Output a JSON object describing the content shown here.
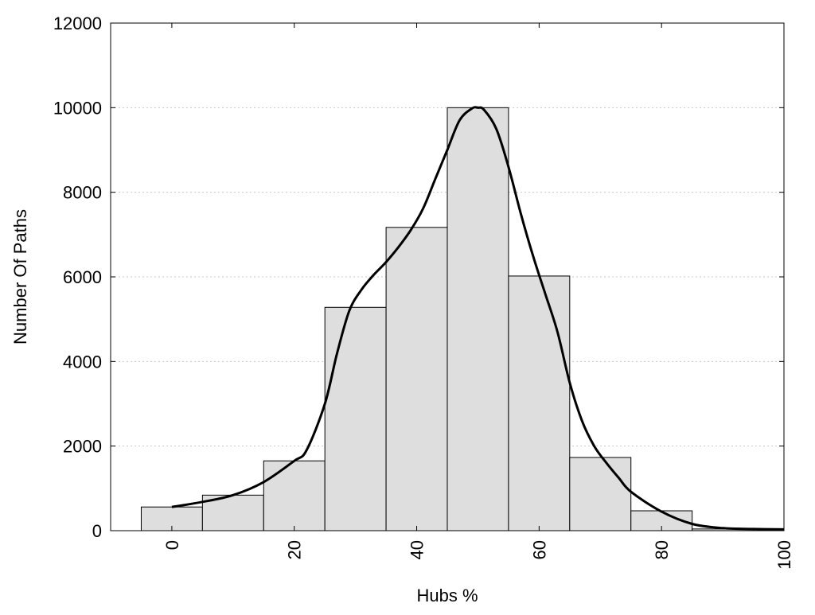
{
  "chart_data": {
    "type": "bar",
    "xlabel": "Hubs %",
    "ylabel": "Number Of Paths",
    "xlim": [
      -10,
      100
    ],
    "ylim": [
      0,
      12000
    ],
    "x_ticks": [
      0,
      20,
      40,
      60,
      80,
      100
    ],
    "y_ticks": [
      0,
      2000,
      4000,
      6000,
      8000,
      10000,
      12000
    ],
    "grid": "horizontal dotted",
    "bin_width": 10,
    "bins": [
      {
        "center": 0,
        "value": 560
      },
      {
        "center": 10,
        "value": 840
      },
      {
        "center": 20,
        "value": 1650
      },
      {
        "center": 30,
        "value": 5280
      },
      {
        "center": 40,
        "value": 7170
      },
      {
        "center": 50,
        "value": 10000
      },
      {
        "center": 60,
        "value": 6020
      },
      {
        "center": 70,
        "value": 1730
      },
      {
        "center": 80,
        "value": 470
      },
      {
        "center": 90,
        "value": 40
      }
    ],
    "curve": {
      "x": [
        0,
        5,
        10,
        15,
        20,
        22,
        25,
        27,
        29,
        31,
        33,
        35,
        37,
        39,
        41,
        43,
        45,
        47,
        49,
        50,
        51,
        53,
        55,
        57,
        59,
        61,
        63,
        65,
        67,
        69,
        71,
        73,
        75,
        80,
        85,
        90,
        95,
        100
      ],
      "y": [
        560,
        680,
        840,
        1150,
        1650,
        1900,
        3000,
        4200,
        5200,
        5700,
        6050,
        6350,
        6700,
        7100,
        7600,
        8300,
        9000,
        9700,
        9980,
        10000,
        9950,
        9500,
        8600,
        7500,
        6500,
        5600,
        4700,
        3500,
        2600,
        2000,
        1600,
        1250,
        920,
        450,
        160,
        60,
        40,
        30
      ]
    },
    "bar_color": "#dedede",
    "bar_edge_color": "#000000",
    "curve_color": "#000000"
  }
}
